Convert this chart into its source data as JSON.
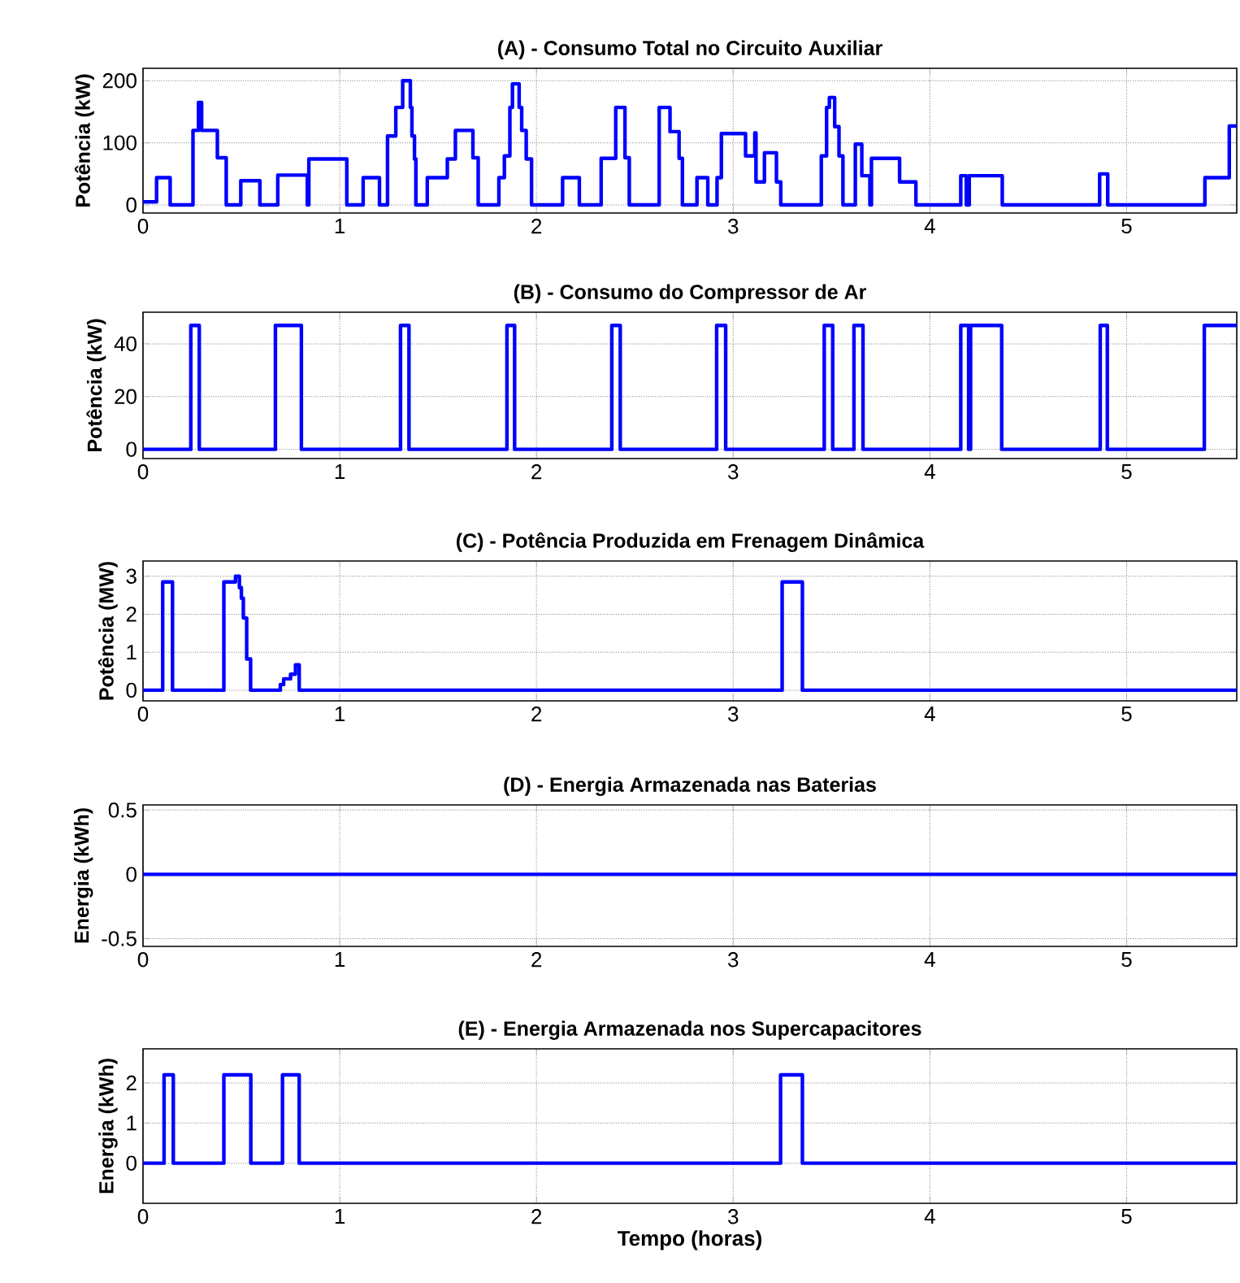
{
  "chart_data": [
    {
      "type": "step",
      "title": "(A) - Consumo Total no Circuito Auxiliar",
      "ylabel": "Potência (kW)",
      "color": "#0000ff",
      "grid": true,
      "xlim": [
        0,
        5.56
      ],
      "xticks": [
        0,
        1,
        2,
        3,
        4,
        5
      ],
      "ylim": [
        -13,
        220
      ],
      "yticks": [
        0,
        100,
        200
      ],
      "x": [
        0,
        0.069,
        0.138,
        0.254,
        0.282,
        0.298,
        0.378,
        0.423,
        0.497,
        0.594,
        0.685,
        0.835,
        0.843,
        1.036,
        1.119,
        1.202,
        1.243,
        1.285,
        1.32,
        1.359,
        1.367,
        1.38,
        1.387,
        1.445,
        1.547,
        1.588,
        1.677,
        1.704,
        1.809,
        1.837,
        1.865,
        1.878,
        1.912,
        1.925,
        1.948,
        1.975,
        2.133,
        2.218,
        2.329,
        2.403,
        2.45,
        2.472,
        2.624,
        2.679,
        2.725,
        2.742,
        2.816,
        2.871,
        2.918,
        2.94,
        3.063,
        3.11,
        3.116,
        3.159,
        3.22,
        3.242,
        3.448,
        3.475,
        3.489,
        3.516,
        3.538,
        3.558,
        3.621,
        3.654,
        3.695,
        3.703,
        3.846,
        3.929,
        4.157,
        4.185,
        4.2,
        4.368,
        4.863,
        4.904,
        5.398,
        5.522,
        5.56
      ],
      "values": [
        5,
        44,
        0,
        120,
        165,
        120,
        76,
        0,
        39,
        0,
        48,
        0,
        74,
        0,
        44,
        0,
        111,
        157,
        200,
        157,
        111,
        74,
        0,
        44,
        74,
        120,
        76,
        0,
        44,
        79,
        157,
        195,
        157,
        120,
        74,
        0,
        44,
        0,
        75,
        157,
        76,
        0,
        157,
        118,
        75,
        0,
        44,
        0,
        44,
        115,
        79,
        116,
        37,
        84,
        37,
        0,
        79,
        157,
        173,
        126,
        79,
        0,
        98,
        47,
        0,
        75,
        37,
        0,
        47,
        0,
        47,
        0,
        50,
        0,
        44,
        127,
        127
      ]
    },
    {
      "type": "step",
      "title": "(B) - Consumo do Compressor de Ar",
      "ylabel": "Potência (kW)",
      "color": "#0000ff",
      "grid": true,
      "xlim": [
        0,
        5.56
      ],
      "xticks": [
        0,
        1,
        2,
        3,
        4,
        5
      ],
      "ylim": [
        -3.5,
        52
      ],
      "yticks": [
        0,
        20,
        40
      ],
      "x": [
        0,
        0.243,
        0.286,
        0.673,
        0.805,
        1.309,
        1.352,
        1.85,
        1.889,
        2.383,
        2.426,
        2.916,
        2.962,
        3.463,
        3.506,
        3.614,
        3.66,
        4.157,
        4.197,
        4.207,
        4.365,
        4.866,
        4.902,
        5.395,
        5.56
      ],
      "values": [
        0,
        47,
        0,
        47,
        0,
        47,
        0,
        47,
        0,
        47,
        0,
        47,
        0,
        47,
        0,
        47,
        0,
        47,
        0,
        47,
        0,
        47,
        0,
        47,
        47
      ]
    },
    {
      "type": "step",
      "title": "(C) - Potência Produzida em Frenagem Dinâmica",
      "ylabel": "Potência (MW)",
      "color": "#0000ff",
      "grid": true,
      "xlim": [
        0,
        5.56
      ],
      "xticks": [
        0,
        1,
        2,
        3,
        4,
        5
      ],
      "ylim": [
        -0.28,
        3.4
      ],
      "yticks": [
        0,
        1,
        2,
        3
      ],
      "x": [
        0,
        0.1,
        0.15,
        0.411,
        0.47,
        0.49,
        0.5,
        0.51,
        0.527,
        0.547,
        0.698,
        0.715,
        0.75,
        0.775,
        0.794,
        3.249,
        3.352,
        5.56
      ],
      "values": [
        0,
        2.85,
        0,
        2.85,
        3.0,
        2.7,
        2.42,
        1.9,
        0.82,
        0,
        0.15,
        0.3,
        0.42,
        0.67,
        0,
        2.85,
        0,
        0
      ]
    },
    {
      "type": "step",
      "title": "(D) - Energia Armazenada nas Baterias",
      "ylabel": "Energia (kWh)",
      "color": "#0000ff",
      "grid": true,
      "xlim": [
        0,
        5.56
      ],
      "xticks": [
        0,
        1,
        2,
        3,
        4,
        5
      ],
      "ylim": [
        -0.56,
        0.54
      ],
      "yticks": [
        -0.5,
        0,
        0.5
      ],
      "x": [
        0,
        5.56
      ],
      "values": [
        0,
        0
      ]
    },
    {
      "type": "step",
      "title": "(E) - Energia Armazenada nos Supercapacitores",
      "ylabel": "Energia (kWh)",
      "xlabel": "Tempo (horas)",
      "color": "#0000ff",
      "grid": true,
      "xlim": [
        0,
        5.56
      ],
      "xticks": [
        0,
        1,
        2,
        3,
        4,
        5
      ],
      "ylim": [
        -1,
        2.85
      ],
      "yticks": [
        0,
        1,
        2
      ],
      "x": [
        0,
        0.107,
        0.154,
        0.411,
        0.548,
        0.709,
        0.794,
        3.241,
        3.352,
        5.56
      ],
      "values": [
        0,
        2.2,
        0,
        2.2,
        0,
        2.2,
        0,
        2.2,
        0,
        0
      ]
    }
  ]
}
